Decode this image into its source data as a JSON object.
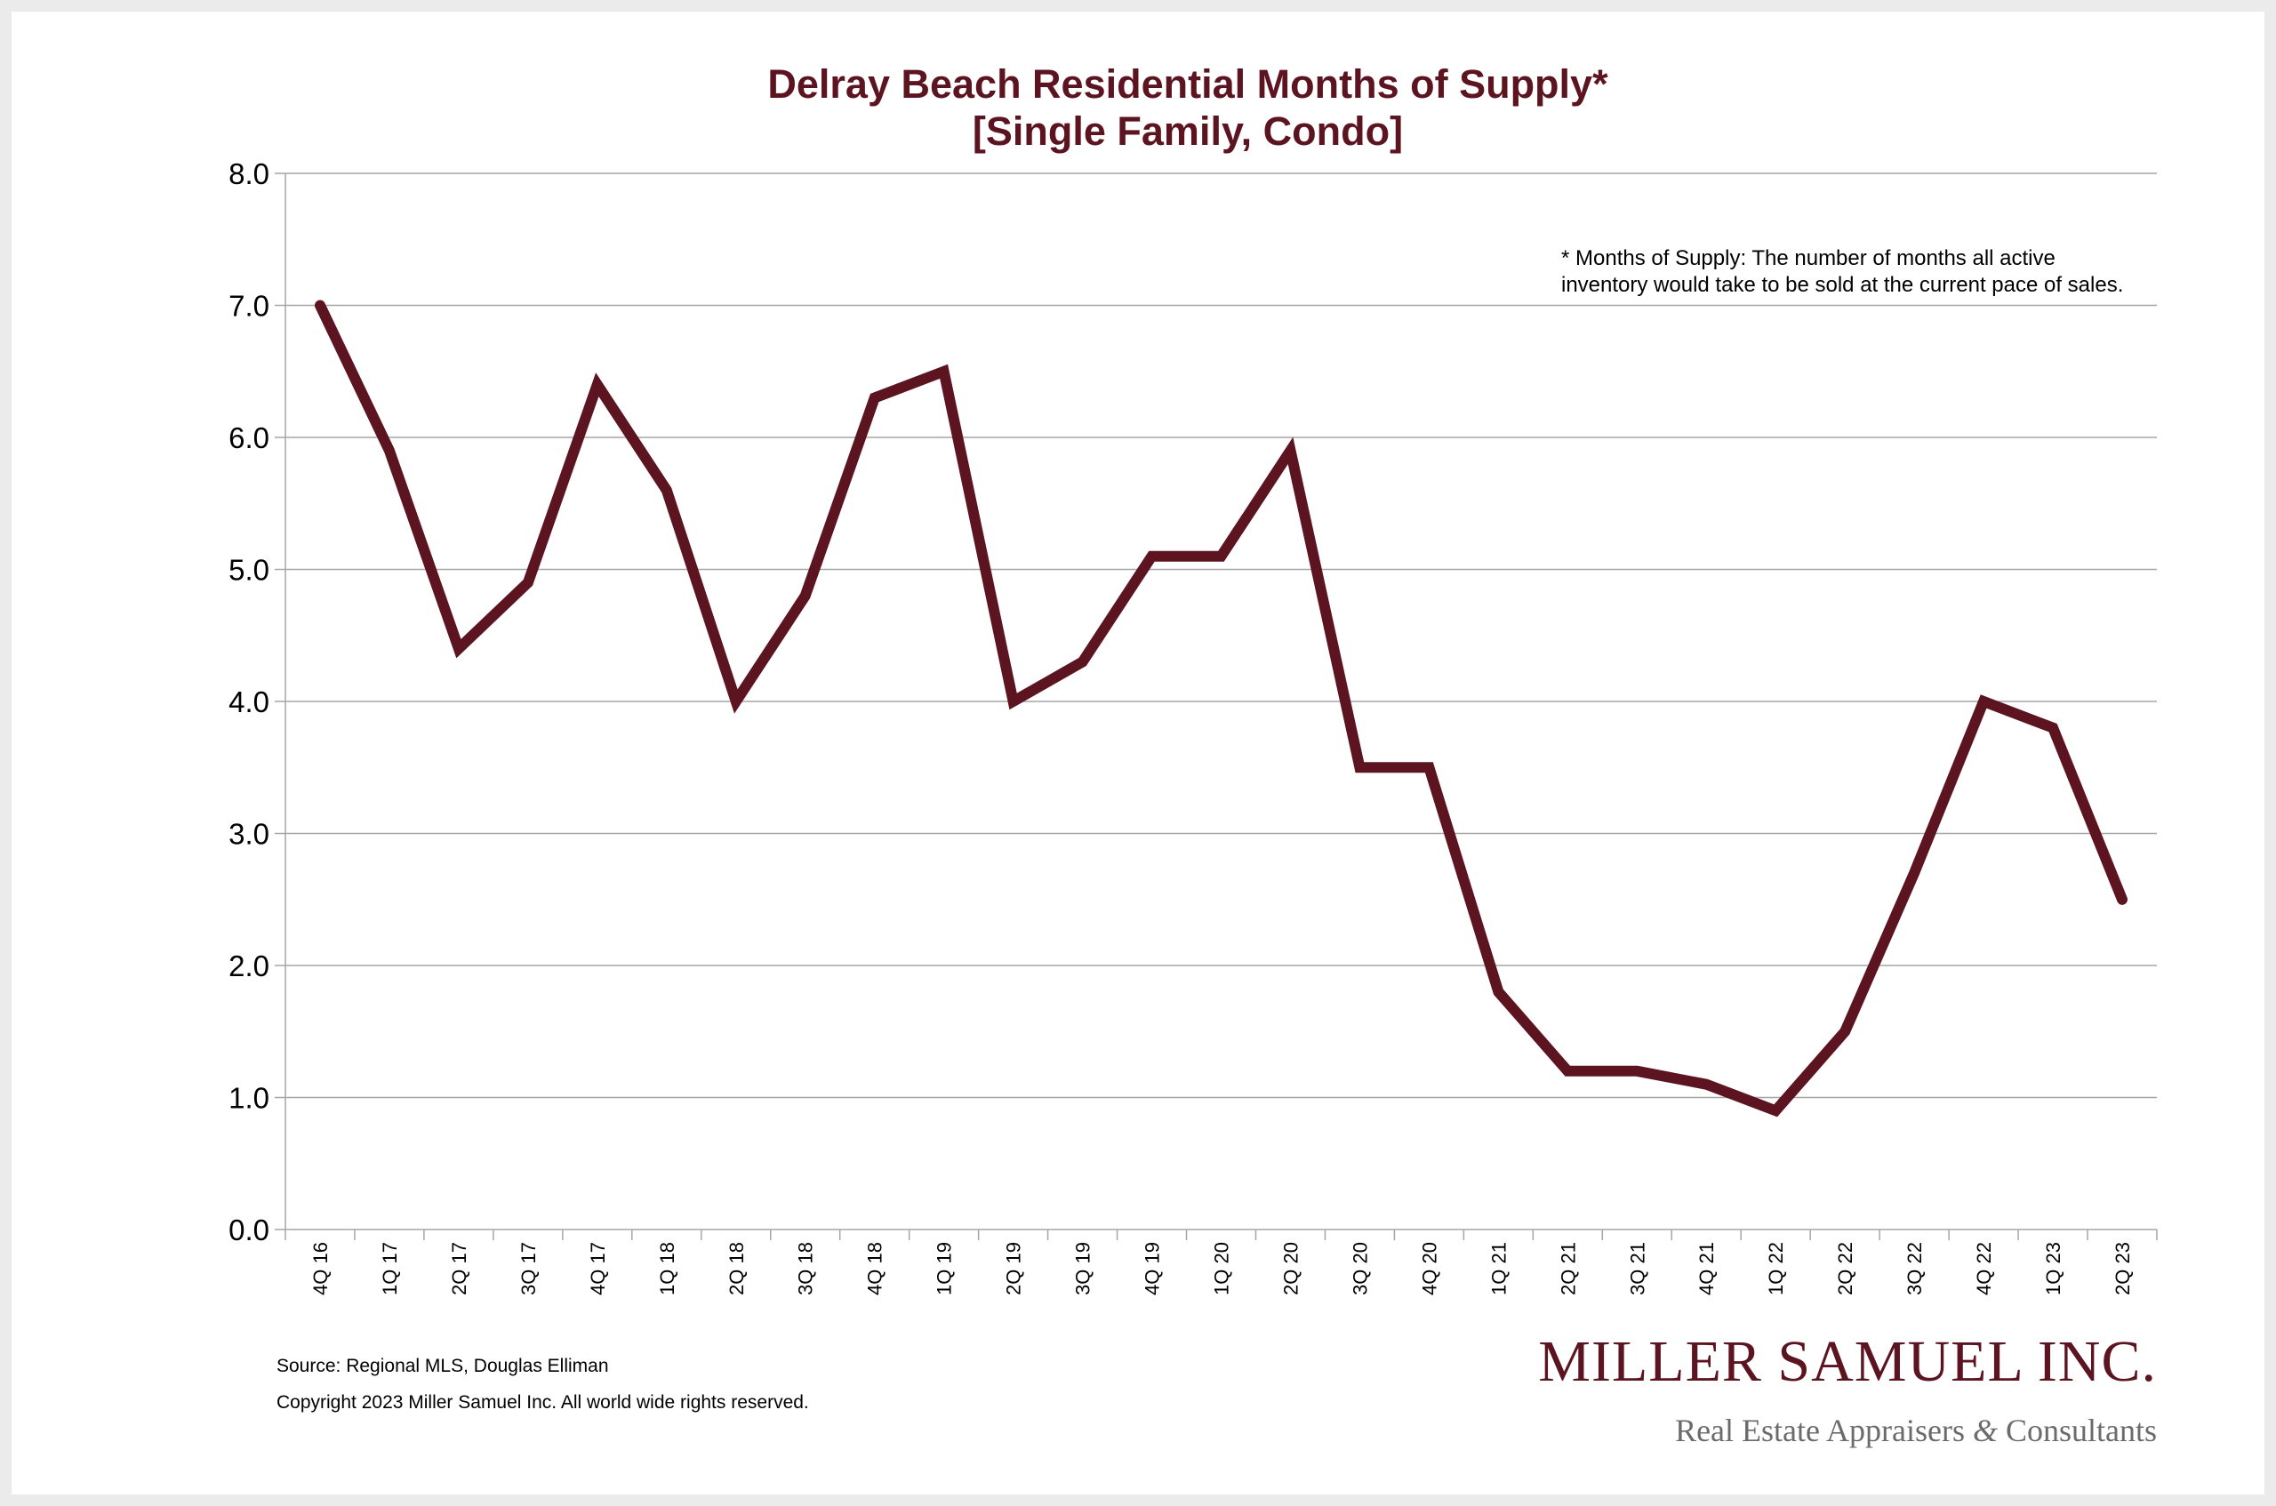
{
  "chart_data": {
    "type": "line",
    "title_line1": "Delray Beach Residential Months of Supply*",
    "title_line2": "[Single Family, Condo]",
    "categories": [
      "4Q 16",
      "1Q 17",
      "2Q 17",
      "3Q 17",
      "4Q 17",
      "1Q 18",
      "2Q 18",
      "3Q 18",
      "4Q 18",
      "1Q 19",
      "2Q 19",
      "3Q 19",
      "4Q 19",
      "1Q 20",
      "2Q 20",
      "3Q 20",
      "4Q 20",
      "1Q 21",
      "2Q 21",
      "3Q 21",
      "4Q 21",
      "1Q 22",
      "2Q 22",
      "3Q 22",
      "4Q 22",
      "1Q 23",
      "2Q 23"
    ],
    "values": [
      7.0,
      5.9,
      4.4,
      4.9,
      6.4,
      5.6,
      4.0,
      4.8,
      6.3,
      6.5,
      4.0,
      4.3,
      5.1,
      5.1,
      5.9,
      3.5,
      3.5,
      1.8,
      1.2,
      1.2,
      1.1,
      0.9,
      1.5,
      2.7,
      4.0,
      3.8,
      2.5
    ],
    "ylim": [
      0,
      8
    ],
    "yticks": [
      "0.0",
      "1.0",
      "2.0",
      "3.0",
      "4.0",
      "5.0",
      "6.0",
      "7.0",
      "8.0"
    ],
    "grid": true,
    "line_color": "#5c1520",
    "note_line1": "* Months of Supply: The number of months all active",
    "note_line2": "inventory would take to be sold at the current pace of sales."
  },
  "footer": {
    "source": "Source: Regional MLS, Douglas Elliman",
    "copyright": "Copyright 2023 Miller Samuel Inc.  All world wide rights reserved."
  },
  "logo": {
    "name": "Miller Samuel Inc.",
    "tagline_part1": "Real Estate Appraisers ",
    "ampersand": "&",
    "tagline_part2": " Consultants"
  },
  "colors": {
    "accent": "#5c1520",
    "grid": "#a6a6a6",
    "background": "#ebebeb"
  }
}
